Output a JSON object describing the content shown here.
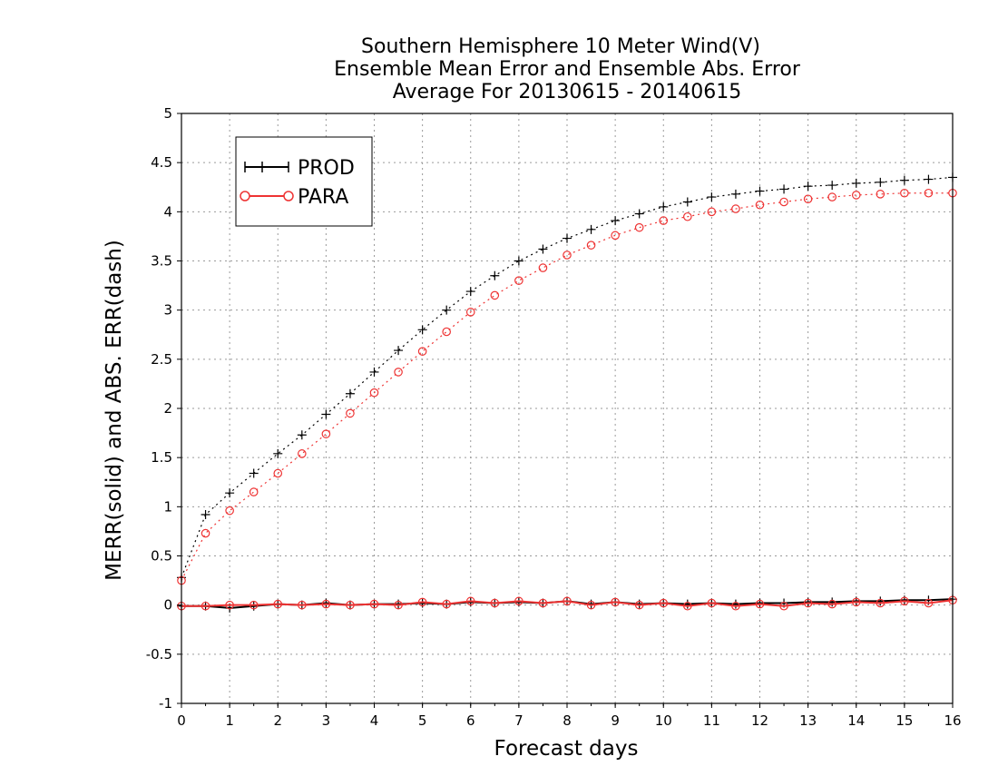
{
  "chart_data": {
    "type": "line",
    "title": [
      "Southern Hemisphere 10 Meter Wind(V)",
      "Ensemble Mean Error and Ensemble Abs. Error",
      "Average For 20130615 - 20140615"
    ],
    "xlabel": "Forecast days",
    "ylabel": "MERR(solid) and ABS. ERR(dash)",
    "xlim": [
      0,
      16
    ],
    "ylim": [
      -1,
      5
    ],
    "x_ticks": [
      "0",
      "1",
      "2",
      "3",
      "4",
      "5",
      "6",
      "7",
      "8",
      "9",
      "10",
      "11",
      "12",
      "13",
      "14",
      "15",
      "16"
    ],
    "y_ticks": [
      "-1",
      "-0.5",
      "0",
      "0.5",
      "1",
      "1.5",
      "2",
      "2.5",
      "3",
      "3.5",
      "4",
      "4.5",
      "5"
    ],
    "grid": true,
    "legend_position": "top-left",
    "x": [
      0,
      0.5,
      1,
      1.5,
      2,
      2.5,
      3,
      3.5,
      4,
      4.5,
      5,
      5.5,
      6,
      6.5,
      7,
      7.5,
      8,
      8.5,
      9,
      9.5,
      10,
      10.5,
      11,
      11.5,
      12,
      12.5,
      13,
      13.5,
      14,
      14.5,
      15,
      15.5,
      16
    ],
    "series": [
      {
        "name": "PROD",
        "color": "#000000",
        "marker": "plus",
        "abs_error": [
          0.28,
          0.92,
          1.14,
          1.34,
          1.54,
          1.73,
          1.94,
          2.15,
          2.37,
          2.59,
          2.8,
          3.0,
          3.19,
          3.35,
          3.5,
          3.62,
          3.73,
          3.82,
          3.91,
          3.98,
          4.05,
          4.1,
          4.15,
          4.18,
          4.21,
          4.23,
          4.26,
          4.27,
          4.29,
          4.3,
          4.32,
          4.33,
          4.35
        ],
        "mean_error": [
          -0.01,
          -0.01,
          -0.03,
          -0.01,
          0.01,
          0.0,
          0.02,
          0.0,
          0.01,
          0.01,
          0.02,
          0.01,
          0.03,
          0.02,
          0.03,
          0.02,
          0.04,
          0.01,
          0.03,
          0.01,
          0.02,
          0.01,
          0.02,
          0.01,
          0.02,
          0.02,
          0.03,
          0.03,
          0.04,
          0.04,
          0.05,
          0.05,
          0.06
        ]
      },
      {
        "name": "PARA",
        "color": "#ee3333",
        "marker": "circle",
        "abs_error": [
          0.25,
          0.73,
          0.96,
          1.15,
          1.34,
          1.54,
          1.74,
          1.95,
          2.16,
          2.37,
          2.58,
          2.78,
          2.98,
          3.15,
          3.3,
          3.43,
          3.56,
          3.66,
          3.76,
          3.84,
          3.91,
          3.95,
          4.0,
          4.03,
          4.07,
          4.1,
          4.13,
          4.15,
          4.17,
          4.18,
          4.19,
          4.19,
          4.19
        ],
        "mean_error": [
          -0.01,
          -0.01,
          0.0,
          0.0,
          0.01,
          0.0,
          0.01,
          0.0,
          0.01,
          0.0,
          0.03,
          0.01,
          0.04,
          0.02,
          0.04,
          0.02,
          0.04,
          0.0,
          0.03,
          0.0,
          0.02,
          -0.01,
          0.02,
          -0.01,
          0.01,
          -0.01,
          0.02,
          0.01,
          0.03,
          0.02,
          0.04,
          0.02,
          0.05
        ]
      }
    ]
  }
}
